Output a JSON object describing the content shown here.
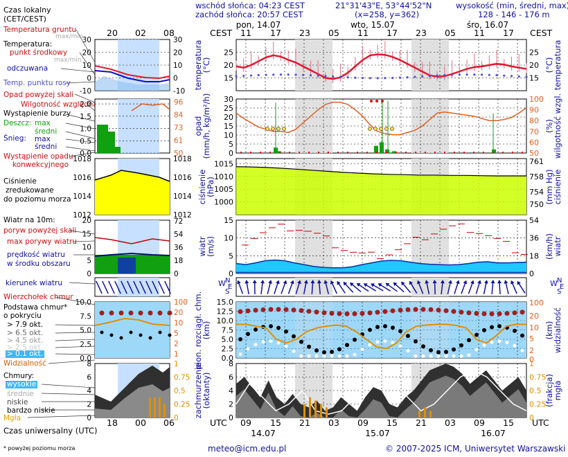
{
  "header": {
    "left_title": "Czas lokalny\n(CET/CEST)",
    "sunrise": "wschód słońca: 04:23 CEST",
    "sunset": "zachód słońca: 20:57 CEST",
    "coords": "21°31'43\"E, 53°44'52\"N",
    "grid": "(x=258, y=362)",
    "elev_title": "wysokość (min, średni, max)",
    "elev_values": "128 - 146 - 176 m",
    "cest": "CEST",
    "days_top": [
      "pon, 14.07",
      "wto, 15.07",
      "śro, 16.07"
    ],
    "hours_top": [
      "11",
      "17",
      "23",
      "05",
      "11",
      "17",
      "23",
      "05",
      "11",
      "17"
    ],
    "left_hours_top": [
      "20",
      "02",
      "08"
    ]
  },
  "legend": {
    "soil_temp": "Temperatura gruntu",
    "soil_temp_sub": "max/min",
    "temperature": "Temperatura:",
    "mid_point": "punkt środkowy",
    "maxmin": "max/min",
    "felt": "odczuwana",
    "dew": "Temp. punktu rosy",
    "above_scale": "Opad powyżej skali",
    "rel_hum": "Wilgotność względna",
    "storm": "Wystąpienie burzy",
    "rain": "Deszcz:",
    "rain_max": "max",
    "mean1": "średni",
    "snow": "Śnieg:",
    "snow_max": "max",
    "mean2": "średni",
    "conv": "Wystąpienie opadu",
    "conv2": "konwekcyjnego",
    "press1": "Ciśnienie",
    "press2": "zredukowane",
    "press3": "do poziomu morza",
    "wind_title": "Wiatr na 10m:",
    "gust_above": "poryw powyżej skali",
    "gust_max": "max porywy wiatru",
    "wind_speed": "prędkość wiatru",
    "wind_speed2": "w środku obszaru",
    "wind_dir": "kierunek wiatru",
    "cb_top": "Wierzchołek chmur",
    "cb_base": "Podstawa chmur*",
    "cb_cov": "o pokryciu",
    "okt": [
      "> 7.9 okt.",
      "> 6.5 okt.",
      "> 4.5 okt.",
      "> 2.5 okt.",
      "> 0.1 okt."
    ],
    "visibility": "Widzialność",
    "clouds": "Chmury:",
    "high": "wysokie",
    "mid": "średnie",
    "low": "niskie",
    "vlow": "bardzo niskie",
    "fog": "Mgła",
    "utc_label": "Czas uniwersalny (UTC)",
    "footnote": "* powyżej poziomu morza",
    "left_hours_bottom": [
      "18",
      "00",
      "06"
    ]
  },
  "axes": {
    "temp_title": "temperatura\n(°C)",
    "temp_right": "(°C)\ntemperatura",
    "precip_title": "opad\n(mm/h, kg/m²/h)",
    "hum_right": "(%)\nwilgotność wzgl.",
    "press_title": "ciśnienie\n(hPa)",
    "press_right": "(mm Hg)\nciśnienie",
    "wind_title": "wiatr\n(m/s)",
    "wind_right": "(km/h)\nwiatr",
    "cloud_title": "pion. rozciągł. chm.\n(km)",
    "vis_right": "(km)\nwidzialność",
    "cover_title": "zachmurzenie\n(oktanty)",
    "fog_right": "(frakcja)\nmgła",
    "wind_dir_letters": [
      "N",
      "S",
      "W",
      "E"
    ],
    "utc": "UTC",
    "hours_bottom": [
      "09",
      "15",
      "21",
      "03",
      "09",
      "15",
      "21",
      "03",
      "09",
      "15"
    ],
    "days_bottom": [
      "14.07",
      "15.07",
      "16.07"
    ]
  },
  "footer": {
    "email": "meteo@icm.edu.pl",
    "copyright": "© 2007-2025 ICM, Uniwersytet Warszawski"
  },
  "colors": {
    "temp_line": "#e01830",
    "rain": "#10a010",
    "humidity": "#e06020",
    "pressure": "#ccff00",
    "wind": "#20c8ff",
    "night": "#e0e0e0",
    "legend_bg": "#c8e0ff",
    "sky": "#9ed8f8"
  },
  "chart_data": [
    {
      "type": "line",
      "title": "temperatura",
      "ylabel": "(°C)",
      "ylim": [
        10,
        30
      ],
      "ticks": [
        15,
        20,
        25
      ],
      "x": [
        "14.07 09",
        "14.07 15",
        "14.07 21",
        "15.07 03",
        "15.07 09",
        "15.07 15",
        "15.07 21",
        "16.07 03",
        "16.07 09",
        "16.07 15"
      ],
      "series": [
        {
          "name": "punkt środkowy",
          "values": [
            18.5,
            23.8,
            21,
            14.6,
            17,
            24.2,
            22,
            15.5,
            17.5,
            20.5
          ]
        },
        {
          "name": "Temp. punktu rosy",
          "values": [
            15.5,
            15.8,
            16.2,
            15.2,
            14.8,
            15.5,
            15.8,
            15.8,
            16,
            16.5
          ]
        }
      ]
    },
    {
      "type": "line",
      "title": "wilgotność wzgl.",
      "ylabel": "(%)",
      "ylim": [
        50,
        100
      ],
      "ticks": [
        50,
        60,
        70,
        80,
        90,
        100
      ],
      "series": [
        {
          "name": "wilgotność",
          "values": [
            85,
            72,
            68,
            95,
            98,
            70,
            65,
            90,
            95,
            80
          ]
        }
      ]
    },
    {
      "type": "bar",
      "title": "opad",
      "ylabel": "(mm/h, kg/m²/h)",
      "ylim": [
        0,
        30
      ],
      "ticks": [
        0,
        5,
        10,
        15,
        20,
        25,
        30
      ]
    },
    {
      "type": "area",
      "title": "ciśnienie",
      "ylabel": "(hPa)",
      "ylim": [
        995,
        1017
      ],
      "ticks": [
        1000,
        1005,
        1010,
        1015
      ],
      "series": [
        {
          "name": "ciśnienie",
          "values": [
            1013.7,
            1013.2,
            1012.4,
            1011.6,
            1011,
            1010.8,
            1010.5,
            1010.4,
            1010.3,
            1010.2
          ]
        }
      ]
    },
    {
      "type": "area",
      "title": "wiatr",
      "ylabel": "(m/s)",
      "ylim": [
        0,
        15
      ],
      "ticks": [
        0,
        5,
        10,
        15
      ],
      "series": [
        {
          "name": "prędkość wiatru",
          "values": [
            2.5,
            3.5,
            2,
            1.5,
            3,
            3.5,
            2.5,
            2.5,
            3,
            3
          ]
        },
        {
          "name": "max porywy wiatru",
          "values": [
            9,
            13,
            8,
            6,
            9,
            12,
            9,
            8,
            10,
            9
          ]
        }
      ]
    },
    {
      "type": "area",
      "title": "zachmurzenie",
      "ylabel": "(oktanty)",
      "ylim": [
        0,
        8
      ],
      "ticks": [
        0,
        2,
        4,
        6,
        8
      ]
    }
  ]
}
